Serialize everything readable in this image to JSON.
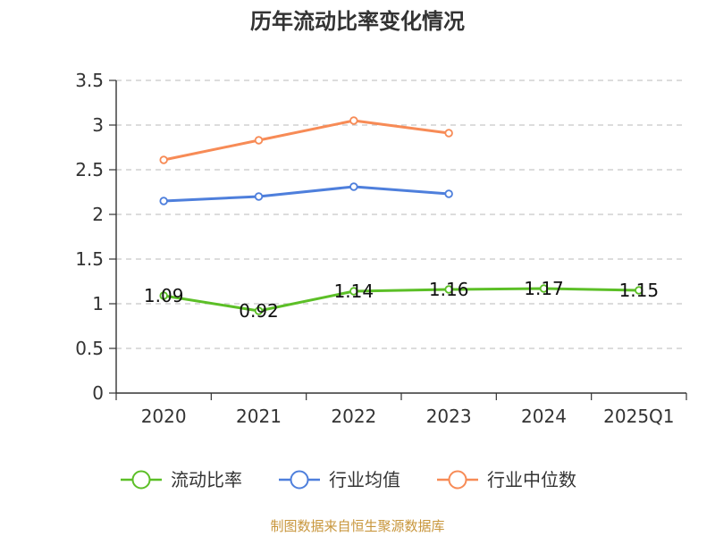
{
  "chart_data": {
    "type": "line",
    "title": "历年流动比率变化情况",
    "xlabel": "",
    "ylabel": "",
    "categories": [
      "2020",
      "2021",
      "2022",
      "2023",
      "2024",
      "2025Q1"
    ],
    "ylim": [
      0,
      3.5
    ],
    "yticks": [
      "0",
      "0.5",
      "1",
      "1.5",
      "2",
      "2.5",
      "3",
      "3.5"
    ],
    "grid": true,
    "legend_position": "bottom",
    "series": [
      {
        "name": "流动比率",
        "color": "#5cbf27",
        "values": [
          1.09,
          0.92,
          1.14,
          1.16,
          1.17,
          1.15
        ],
        "labels": [
          "1.09",
          "0.92",
          "1.14",
          "1.16",
          "1.17",
          "1.15"
        ]
      },
      {
        "name": "行业均值",
        "color": "#4e7fdc",
        "values": [
          2.15,
          2.2,
          2.31,
          2.23,
          null,
          null
        ]
      },
      {
        "name": "行业中位数",
        "color": "#f78b56",
        "values": [
          2.61,
          2.83,
          3.05,
          2.91,
          null,
          null
        ]
      }
    ]
  },
  "source": "制图数据来自恒生聚源数据库"
}
